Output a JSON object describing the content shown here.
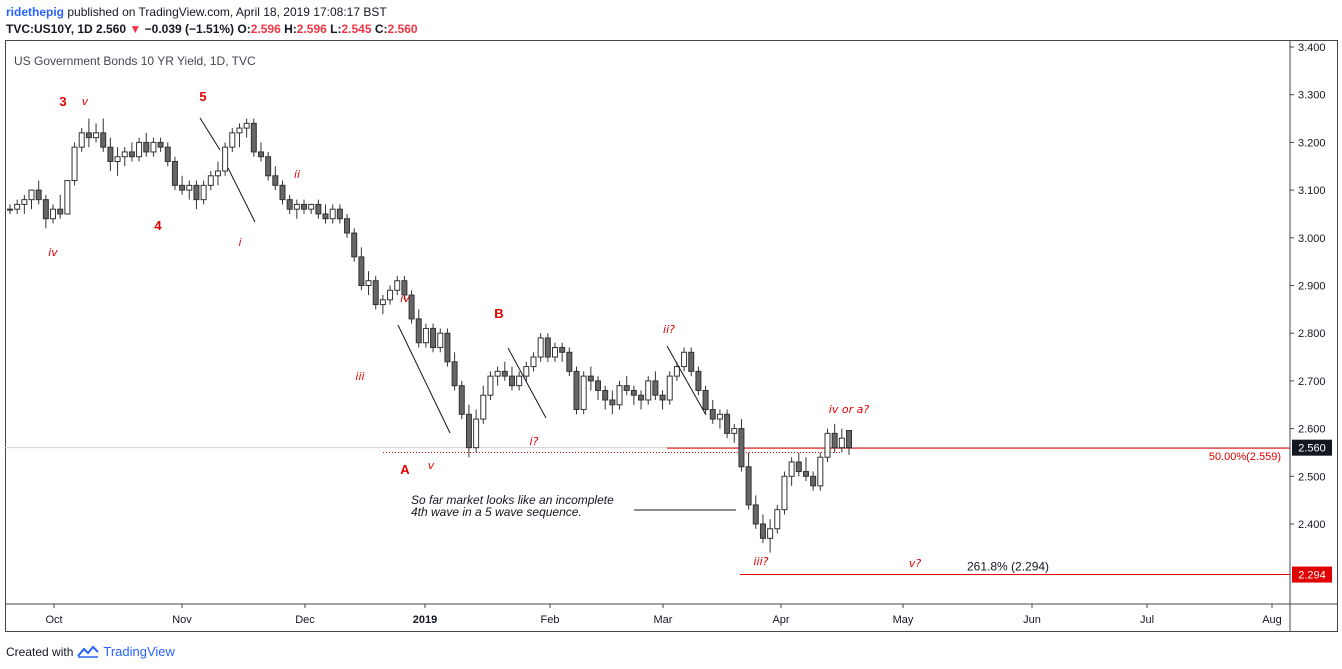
{
  "header": {
    "user": "ridethepig",
    "published": "published on TradingView.com, April 18, 2019 17:08:17 BST",
    "symbol": "TVC:US10Y, 1D",
    "price": "2.560",
    "change": "−0.039 (−1.51%)",
    "o_label": "O:",
    "o_value": "2.596",
    "h_label": "H:",
    "h_value": "2.596",
    "l_label": "L:",
    "l_value": "2.545",
    "c_label": "C:",
    "c_value": "2.560"
  },
  "chart_title": "US Government Bonds 10 YR Yield, 1D, TVC",
  "footer": {
    "created_with": "Created with",
    "brand": "TradingView"
  },
  "colors": {
    "accent": "#2962ff",
    "red": "#e00000",
    "candle_down": "#555555",
    "candle_up": "#ffffff",
    "last_price_bg": "#131722"
  },
  "chart_data": {
    "type": "candlestick",
    "title": "US Government Bonds 10 YR Yield, 1D, TVC",
    "y_ticks": [
      "3.400",
      "3.300",
      "3.200",
      "3.100",
      "3.000",
      "2.900",
      "2.800",
      "2.700",
      "2.600",
      "2.500",
      "2.400"
    ],
    "ylim": [
      2.28,
      3.41
    ],
    "x_ticks": [
      "Oct",
      "Nov",
      "Dec",
      "2019",
      "Feb",
      "Mar",
      "Apr",
      "May",
      "Jun",
      "Jul",
      "Aug"
    ],
    "last_price_label": "2.560",
    "target_label": "2.294",
    "fib_50_label": "50.00%(2.559)",
    "fib_50_value": 2.559,
    "fib_261_label": "261.8% (2.294)",
    "fib_261_value": 2.294,
    "annotation_line1": "So far market looks like an incomplete",
    "annotation_line2": "4th wave in a 5 wave sequence.",
    "wave_labels": [
      "iv",
      "3",
      "v",
      "4",
      "5",
      "ii",
      "i",
      "iv",
      "iii",
      "A",
      "v",
      "B",
      "i?",
      "ii?",
      "iii?",
      "iv or a?",
      "v?"
    ],
    "candles": [
      [
        3.06,
        3.07,
        3.05,
        3.06
      ],
      [
        3.06,
        3.08,
        3.05,
        3.07
      ],
      [
        3.07,
        3.09,
        3.05,
        3.08
      ],
      [
        3.08,
        3.1,
        3.06,
        3.1
      ],
      [
        3.1,
        3.12,
        3.07,
        3.08
      ],
      [
        3.08,
        3.09,
        3.02,
        3.04
      ],
      [
        3.04,
        3.07,
        3.03,
        3.06
      ],
      [
        3.06,
        3.09,
        3.04,
        3.05
      ],
      [
        3.05,
        3.12,
        3.05,
        3.12
      ],
      [
        3.12,
        3.2,
        3.11,
        3.19
      ],
      [
        3.19,
        3.23,
        3.18,
        3.22
      ],
      [
        3.22,
        3.25,
        3.19,
        3.21
      ],
      [
        3.21,
        3.24,
        3.2,
        3.22
      ],
      [
        3.22,
        3.25,
        3.18,
        3.19
      ],
      [
        3.19,
        3.21,
        3.14,
        3.16
      ],
      [
        3.16,
        3.19,
        3.13,
        3.17
      ],
      [
        3.17,
        3.19,
        3.15,
        3.18
      ],
      [
        3.18,
        3.2,
        3.16,
        3.17
      ],
      [
        3.17,
        3.21,
        3.16,
        3.2
      ],
      [
        3.2,
        3.22,
        3.17,
        3.18
      ],
      [
        3.18,
        3.21,
        3.17,
        3.2
      ],
      [
        3.2,
        3.21,
        3.18,
        3.19
      ],
      [
        3.19,
        3.2,
        3.15,
        3.16
      ],
      [
        3.16,
        3.17,
        3.1,
        3.11
      ],
      [
        3.11,
        3.13,
        3.09,
        3.1
      ],
      [
        3.1,
        3.12,
        3.08,
        3.11
      ],
      [
        3.11,
        3.12,
        3.06,
        3.08
      ],
      [
        3.08,
        3.12,
        3.07,
        3.11
      ],
      [
        3.11,
        3.14,
        3.1,
        3.13
      ],
      [
        3.13,
        3.16,
        3.11,
        3.14
      ],
      [
        3.14,
        3.2,
        3.13,
        3.19
      ],
      [
        3.19,
        3.23,
        3.18,
        3.22
      ],
      [
        3.22,
        3.24,
        3.19,
        3.23
      ],
      [
        3.23,
        3.25,
        3.21,
        3.24
      ],
      [
        3.24,
        3.25,
        3.17,
        3.18
      ],
      [
        3.18,
        3.2,
        3.16,
        3.17
      ],
      [
        3.17,
        3.18,
        3.12,
        3.13
      ],
      [
        3.13,
        3.15,
        3.1,
        3.11
      ],
      [
        3.11,
        3.12,
        3.07,
        3.08
      ],
      [
        3.08,
        3.09,
        3.05,
        3.06
      ],
      [
        3.06,
        3.08,
        3.04,
        3.07
      ],
      [
        3.07,
        3.08,
        3.05,
        3.06
      ],
      [
        3.06,
        3.07,
        3.05,
        3.07
      ],
      [
        3.07,
        3.08,
        3.04,
        3.05
      ],
      [
        3.05,
        3.07,
        3.03,
        3.04
      ],
      [
        3.04,
        3.07,
        3.03,
        3.06
      ],
      [
        3.06,
        3.07,
        3.03,
        3.04
      ],
      [
        3.04,
        3.05,
        3.0,
        3.01
      ],
      [
        3.01,
        3.02,
        2.95,
        2.96
      ],
      [
        2.96,
        2.98,
        2.89,
        2.9
      ],
      [
        2.9,
        2.93,
        2.88,
        2.91
      ],
      [
        2.91,
        2.92,
        2.85,
        2.86
      ],
      [
        2.86,
        2.88,
        2.84,
        2.87
      ],
      [
        2.87,
        2.9,
        2.86,
        2.89
      ],
      [
        2.89,
        2.92,
        2.88,
        2.91
      ],
      [
        2.91,
        2.92,
        2.87,
        2.88
      ],
      [
        2.88,
        2.89,
        2.82,
        2.83
      ],
      [
        2.83,
        2.85,
        2.77,
        2.78
      ],
      [
        2.78,
        2.82,
        2.77,
        2.81
      ],
      [
        2.81,
        2.82,
        2.76,
        2.77
      ],
      [
        2.77,
        2.81,
        2.76,
        2.8
      ],
      [
        2.8,
        2.81,
        2.73,
        2.74
      ],
      [
        2.74,
        2.76,
        2.68,
        2.69
      ],
      [
        2.69,
        2.7,
        2.62,
        2.63
      ],
      [
        2.63,
        2.65,
        2.54,
        2.56
      ],
      [
        2.56,
        2.64,
        2.55,
        2.62
      ],
      [
        2.62,
        2.69,
        2.61,
        2.67
      ],
      [
        2.67,
        2.72,
        2.66,
        2.71
      ],
      [
        2.71,
        2.73,
        2.69,
        2.72
      ],
      [
        2.72,
        2.74,
        2.7,
        2.71
      ],
      [
        2.71,
        2.73,
        2.68,
        2.69
      ],
      [
        2.69,
        2.72,
        2.68,
        2.71
      ],
      [
        2.71,
        2.74,
        2.7,
        2.73
      ],
      [
        2.73,
        2.76,
        2.72,
        2.75
      ],
      [
        2.75,
        2.8,
        2.74,
        2.79
      ],
      [
        2.79,
        2.8,
        2.74,
        2.75
      ],
      [
        2.75,
        2.78,
        2.74,
        2.77
      ],
      [
        2.77,
        2.78,
        2.74,
        2.76
      ],
      [
        2.76,
        2.77,
        2.71,
        2.72
      ],
      [
        2.72,
        2.73,
        2.63,
        2.64
      ],
      [
        2.64,
        2.72,
        2.63,
        2.71
      ],
      [
        2.71,
        2.73,
        2.68,
        2.7
      ],
      [
        2.7,
        2.71,
        2.66,
        2.68
      ],
      [
        2.68,
        2.69,
        2.64,
        2.66
      ],
      [
        2.66,
        2.68,
        2.63,
        2.65
      ],
      [
        2.65,
        2.7,
        2.64,
        2.69
      ],
      [
        2.69,
        2.71,
        2.67,
        2.68
      ],
      [
        2.68,
        2.69,
        2.65,
        2.67
      ],
      [
        2.67,
        2.68,
        2.64,
        2.66
      ],
      [
        2.66,
        2.71,
        2.65,
        2.7
      ],
      [
        2.7,
        2.72,
        2.66,
        2.67
      ],
      [
        2.67,
        2.68,
        2.64,
        2.66
      ],
      [
        2.66,
        2.72,
        2.65,
        2.71
      ],
      [
        2.71,
        2.74,
        2.7,
        2.73
      ],
      [
        2.73,
        2.77,
        2.72,
        2.76
      ],
      [
        2.76,
        2.77,
        2.71,
        2.72
      ],
      [
        2.72,
        2.73,
        2.67,
        2.68
      ],
      [
        2.68,
        2.69,
        2.63,
        2.64
      ],
      [
        2.64,
        2.66,
        2.61,
        2.62
      ],
      [
        2.62,
        2.64,
        2.6,
        2.63
      ],
      [
        2.63,
        2.64,
        2.58,
        2.59
      ],
      [
        2.59,
        2.61,
        2.57,
        2.6
      ],
      [
        2.6,
        2.62,
        2.51,
        2.52
      ],
      [
        2.52,
        2.55,
        2.43,
        2.44
      ],
      [
        2.44,
        2.46,
        2.39,
        2.4
      ],
      [
        2.4,
        2.42,
        2.36,
        2.37
      ],
      [
        2.37,
        2.41,
        2.34,
        2.39
      ],
      [
        2.39,
        2.44,
        2.38,
        2.43
      ],
      [
        2.43,
        2.51,
        2.42,
        2.5
      ],
      [
        2.5,
        2.54,
        2.48,
        2.53
      ],
      [
        2.53,
        2.55,
        2.5,
        2.51
      ],
      [
        2.51,
        2.54,
        2.49,
        2.5
      ],
      [
        2.5,
        2.51,
        2.47,
        2.48
      ],
      [
        2.48,
        2.55,
        2.47,
        2.54
      ],
      [
        2.54,
        2.6,
        2.53,
        2.59
      ],
      [
        2.59,
        2.61,
        2.55,
        2.56
      ],
      [
        2.56,
        2.6,
        2.55,
        2.58
      ],
      [
        2.596,
        2.596,
        2.545,
        2.56
      ]
    ]
  }
}
